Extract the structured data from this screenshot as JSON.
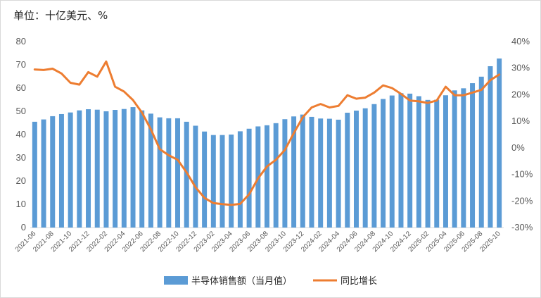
{
  "unit_label": "单位：十亿美元、%",
  "chart_data": {
    "type": "bar+line",
    "categories": [
      "2021-06",
      "2021-07",
      "2021-08",
      "2021-09",
      "2021-10",
      "2021-11",
      "2021-12",
      "2022-01",
      "2022-02",
      "2022-03",
      "2022-04",
      "2022-05",
      "2022-06",
      "2022-07",
      "2022-08",
      "2022-09",
      "2022-10",
      "2022-11",
      "2022-12",
      "2023-01",
      "2023-02",
      "2023-03",
      "2023-04",
      "2023-05",
      "2023-06",
      "2023-07",
      "2023-08",
      "2023-09",
      "2023-10",
      "2023-11",
      "2023-12",
      "2024-01",
      "2024-02",
      "2024-03",
      "2024-04",
      "2024-05",
      "2024-06",
      "2024-07",
      "2024-08",
      "2024-09",
      "2024-10",
      "2024-11",
      "2024-12",
      "2025-01",
      "2025-02",
      "2025-03",
      "2025-04",
      "2025-05",
      "2025-06",
      "2025-07",
      "2025-08",
      "2025-09",
      "2025-10"
    ],
    "x_tick_labels": [
      "2021-06",
      "2021-08",
      "2021-10",
      "2021-12",
      "2022-02",
      "2022-04",
      "2022-06",
      "2022-08",
      "2022-10",
      "2022-12",
      "2023-02",
      "2023-04",
      "2023-06",
      "2023-08",
      "2023-10",
      "2023-12",
      "2024-02",
      "2024-04",
      "2024-06",
      "2024-08",
      "2024-10",
      "2024-12",
      "2025-02",
      "2025-04",
      "2025-06",
      "2025-08",
      "2025-10"
    ],
    "series": [
      {
        "name": "半导体销售额（当月值）",
        "type": "bar",
        "axis": "left",
        "color": "#5b9bd5",
        "values": [
          45.5,
          46.5,
          47.9,
          48.8,
          49.5,
          50.4,
          50.9,
          50.7,
          50.0,
          50.6,
          51.0,
          51.8,
          50.4,
          49.0,
          47.4,
          47.0,
          47.0,
          45.5,
          43.8,
          41.3,
          39.8,
          39.8,
          40.0,
          41.4,
          42.5,
          43.5,
          44.0,
          44.9,
          46.6,
          47.8,
          48.6,
          47.6,
          46.9,
          46.8,
          46.4,
          49.4,
          50.3,
          51.3,
          53.1,
          55.3,
          56.8,
          57.8,
          57.6,
          56.5,
          54.9,
          55.0,
          56.9,
          59.0,
          59.9,
          62.1,
          64.9,
          69.4,
          72.7
        ]
      },
      {
        "name": "同比增长",
        "type": "line",
        "axis": "right",
        "color": "#ed7d31",
        "values": [
          29.5,
          29.3,
          29.8,
          28.0,
          24.5,
          23.8,
          28.5,
          26.8,
          32.5,
          23.0,
          21.2,
          18.0,
          13.3,
          7.0,
          -0.5,
          -2.8,
          -4.5,
          -9.2,
          -14.8,
          -18.8,
          -20.8,
          -21.2,
          -21.5,
          -21.1,
          -17.5,
          -11.5,
          -7.0,
          -4.5,
          -0.8,
          5.5,
          11.5,
          15.2,
          16.5,
          15.2,
          15.8,
          19.8,
          18.5,
          18.9,
          20.8,
          23.5,
          22.5,
          20.3,
          17.8,
          17.5,
          16.9,
          17.8,
          23.0,
          19.8,
          19.8,
          20.8,
          21.8,
          25.5,
          27.6
        ]
      }
    ],
    "y_left": {
      "min": 0,
      "max": 80,
      "ticks": [
        0,
        10,
        20,
        30,
        40,
        50,
        60,
        70,
        80
      ]
    },
    "y_right": {
      "min": -30,
      "max": 40,
      "ticks": [
        "-30%",
        "-20%",
        "-10%",
        "0%",
        "10%",
        "20%",
        "30%",
        "40%"
      ]
    },
    "grid": false,
    "legend": "bottom-center"
  }
}
